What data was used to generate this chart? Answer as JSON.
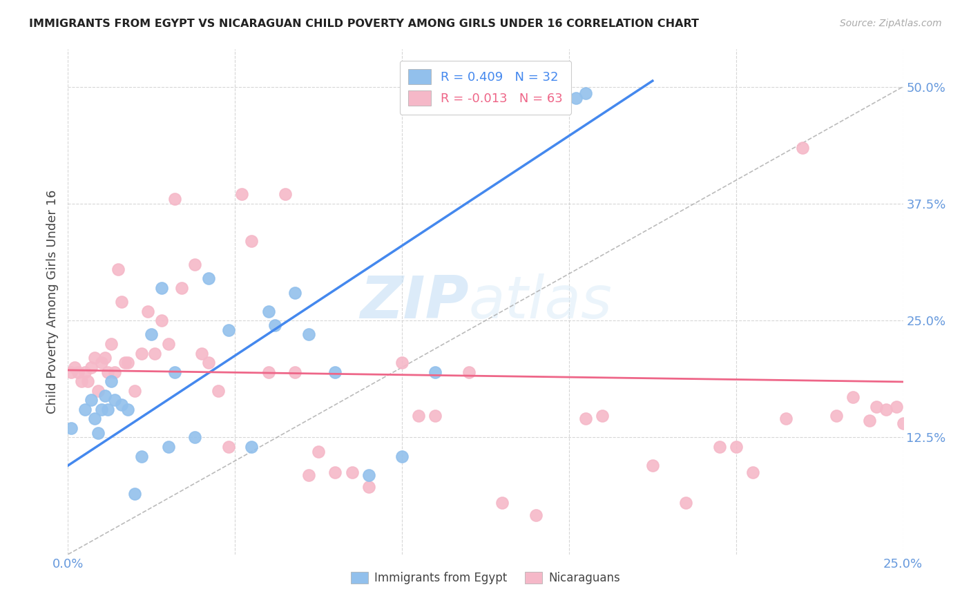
{
  "title": "IMMIGRANTS FROM EGYPT VS NICARAGUAN CHILD POVERTY AMONG GIRLS UNDER 16 CORRELATION CHART",
  "source": "Source: ZipAtlas.com",
  "ylabel": "Child Poverty Among Girls Under 16",
  "ytick_labels": [
    "50.0%",
    "37.5%",
    "25.0%",
    "12.5%"
  ],
  "ytick_values": [
    0.5,
    0.375,
    0.25,
    0.125
  ],
  "xlim": [
    0.0,
    0.25
  ],
  "ylim": [
    0.0,
    0.54
  ],
  "blue_color": "#92C0EC",
  "pink_color": "#F5B8C8",
  "blue_line_color": "#4488EE",
  "pink_line_color": "#EE6688",
  "diag_line_color": "#AAAAAA",
  "watermark_zip": "ZIP",
  "watermark_atlas": "atlas",
  "blue_scatter_x": [
    0.001,
    0.005,
    0.007,
    0.008,
    0.009,
    0.01,
    0.011,
    0.012,
    0.013,
    0.014,
    0.016,
    0.018,
    0.02,
    0.022,
    0.025,
    0.028,
    0.03,
    0.032,
    0.038,
    0.042,
    0.048,
    0.055,
    0.06,
    0.062,
    0.068,
    0.072,
    0.08,
    0.09,
    0.1,
    0.11,
    0.152,
    0.155
  ],
  "blue_scatter_y": [
    0.135,
    0.155,
    0.165,
    0.145,
    0.13,
    0.155,
    0.17,
    0.155,
    0.185,
    0.165,
    0.16,
    0.155,
    0.065,
    0.105,
    0.235,
    0.285,
    0.115,
    0.195,
    0.125,
    0.295,
    0.24,
    0.115,
    0.26,
    0.245,
    0.28,
    0.235,
    0.195,
    0.085,
    0.105,
    0.195,
    0.488,
    0.493
  ],
  "pink_scatter_x": [
    0.001,
    0.002,
    0.003,
    0.004,
    0.005,
    0.006,
    0.007,
    0.008,
    0.009,
    0.01,
    0.011,
    0.012,
    0.013,
    0.014,
    0.015,
    0.016,
    0.017,
    0.018,
    0.02,
    0.022,
    0.024,
    0.026,
    0.028,
    0.03,
    0.032,
    0.034,
    0.038,
    0.04,
    0.042,
    0.045,
    0.048,
    0.052,
    0.055,
    0.06,
    0.065,
    0.068,
    0.072,
    0.075,
    0.08,
    0.085,
    0.09,
    0.1,
    0.105,
    0.11,
    0.12,
    0.13,
    0.14,
    0.155,
    0.16,
    0.175,
    0.185,
    0.195,
    0.2,
    0.205,
    0.215,
    0.22,
    0.23,
    0.235,
    0.24,
    0.242,
    0.245,
    0.248,
    0.25
  ],
  "pink_scatter_y": [
    0.195,
    0.2,
    0.195,
    0.185,
    0.195,
    0.185,
    0.2,
    0.21,
    0.175,
    0.205,
    0.21,
    0.195,
    0.225,
    0.195,
    0.305,
    0.27,
    0.205,
    0.205,
    0.175,
    0.215,
    0.26,
    0.215,
    0.25,
    0.225,
    0.38,
    0.285,
    0.31,
    0.215,
    0.205,
    0.175,
    0.115,
    0.385,
    0.335,
    0.195,
    0.385,
    0.195,
    0.085,
    0.11,
    0.088,
    0.088,
    0.072,
    0.205,
    0.148,
    0.148,
    0.195,
    0.055,
    0.042,
    0.145,
    0.148,
    0.095,
    0.055,
    0.115,
    0.115,
    0.088,
    0.145,
    0.435,
    0.148,
    0.168,
    0.143,
    0.158,
    0.155,
    0.158,
    0.14
  ],
  "blue_line_x": [
    0.0,
    0.175
  ],
  "blue_line_y_intercept": 0.095,
  "blue_line_slope": 2.35,
  "pink_line_x": [
    0.0,
    0.25
  ],
  "pink_line_y_intercept": 0.197,
  "pink_line_slope": -0.05
}
